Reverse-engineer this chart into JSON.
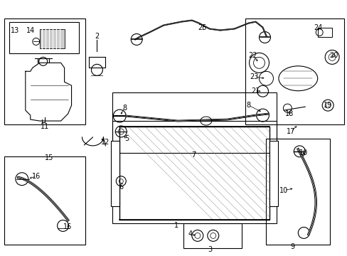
{
  "bg_color": "#ffffff",
  "fig_width": 4.89,
  "fig_height": 3.6,
  "dpi": 100,
  "line_color": "#000000",
  "gray_color": "#666666",
  "light_gray": "#aaaaaa"
}
